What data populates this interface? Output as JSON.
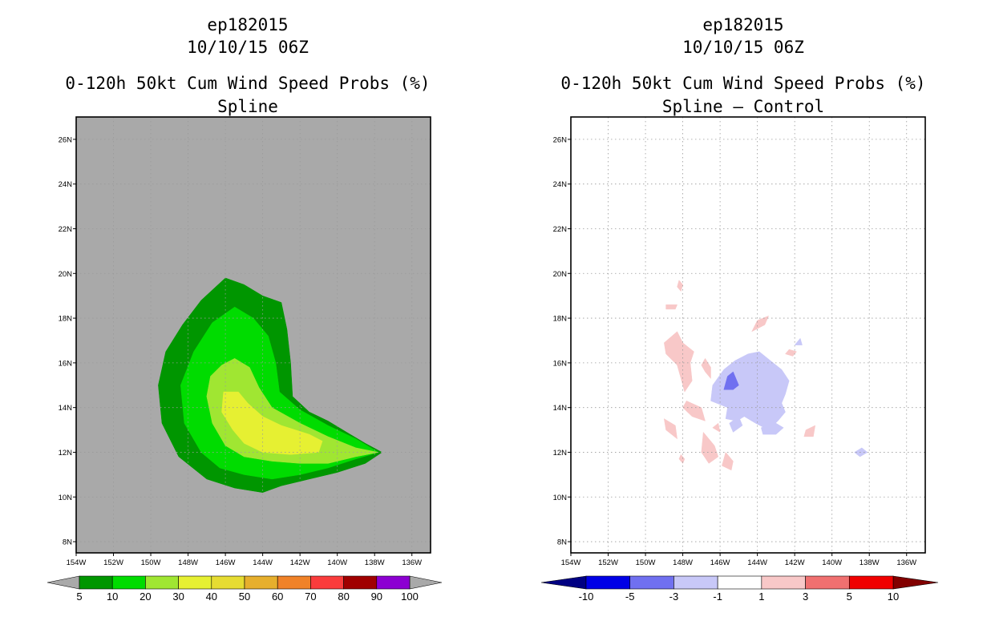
{
  "charts": {
    "left": {
      "storm_id": "ep182015",
      "datetime": "10/10/15 06Z",
      "product": "0-120h 50kt Cum Wind Speed Probs (%)",
      "subtitle": "Spline"
    },
    "right": {
      "storm_id": "ep182015",
      "datetime": "10/10/15 06Z",
      "product": "0-120h 50kt Cum Wind Speed Probs (%)",
      "subtitle": "Spline – Control"
    }
  },
  "chart_data": [
    {
      "type": "contour-map",
      "title": "0-120h 50kt Cum Wind Speed Probs (%)",
      "subtitle": "Spline",
      "x_tick_labels": [
        "154W",
        "152W",
        "150W",
        "148W",
        "146W",
        "144W",
        "142W",
        "140W",
        "138W",
        "136W"
      ],
      "y_tick_labels": [
        "8N",
        "10N",
        "12N",
        "14N",
        "16N",
        "18N",
        "20N",
        "22N",
        "24N",
        "26N"
      ],
      "xlim": [
        -154,
        -135
      ],
      "ylim": [
        7.5,
        27
      ],
      "background_color": "#a9a9a9",
      "colorbar": {
        "labels": [
          "5",
          "10",
          "20",
          "30",
          "40",
          "50",
          "60",
          "70",
          "80",
          "90",
          "100"
        ],
        "colors": [
          "#009600",
          "#00dc00",
          "#a0e632",
          "#e6f032",
          "#e6dc32",
          "#e6af2d",
          "#f08228",
          "#fa3c3c",
          "#a00000",
          "#8c00d2"
        ],
        "end_arrow_color": "#a9a9a9"
      },
      "contours": [
        {
          "level": "5-10",
          "color": "#009600",
          "points": [
            [
              -146.0,
              19.8
            ],
            [
              -145.0,
              19.5
            ],
            [
              -144.0,
              19.0
            ],
            [
              -143.0,
              18.7
            ],
            [
              -142.7,
              17.5
            ],
            [
              -142.5,
              16.0
            ],
            [
              -142.4,
              14.5
            ],
            [
              -141.5,
              13.8
            ],
            [
              -140.5,
              13.4
            ],
            [
              -139.5,
              12.9
            ],
            [
              -138.5,
              12.4
            ],
            [
              -137.6,
              12.0
            ],
            [
              -138.5,
              11.5
            ],
            [
              -140.0,
              11.1
            ],
            [
              -141.5,
              10.8
            ],
            [
              -143.0,
              10.5
            ],
            [
              -144.0,
              10.2
            ],
            [
              -145.5,
              10.4
            ],
            [
              -147.0,
              10.8
            ],
            [
              -148.5,
              11.8
            ],
            [
              -149.4,
              13.3
            ],
            [
              -149.6,
              15.0
            ],
            [
              -149.2,
              16.5
            ],
            [
              -148.3,
              17.7
            ],
            [
              -147.3,
              18.8
            ]
          ]
        },
        {
          "level": "10-20",
          "color": "#00dc00",
          "points": [
            [
              -145.5,
              18.5
            ],
            [
              -144.5,
              18.0
            ],
            [
              -143.7,
              17.2
            ],
            [
              -143.3,
              16.0
            ],
            [
              -143.1,
              14.7
            ],
            [
              -142.0,
              13.9
            ],
            [
              -140.5,
              13.2
            ],
            [
              -139.0,
              12.6
            ],
            [
              -137.8,
              12.0
            ],
            [
              -139.0,
              11.7
            ],
            [
              -140.5,
              11.3
            ],
            [
              -142.0,
              11.0
            ],
            [
              -143.5,
              10.8
            ],
            [
              -145.0,
              11.0
            ],
            [
              -146.3,
              11.3
            ],
            [
              -147.3,
              12.0
            ],
            [
              -148.2,
              13.3
            ],
            [
              -148.4,
              15.0
            ],
            [
              -147.7,
              16.5
            ],
            [
              -146.7,
              17.8
            ]
          ]
        },
        {
          "level": "20-30",
          "color": "#a0e632",
          "points": [
            [
              -145.5,
              16.2
            ],
            [
              -144.7,
              15.8
            ],
            [
              -144.2,
              14.9
            ],
            [
              -143.5,
              14.0
            ],
            [
              -142.0,
              13.3
            ],
            [
              -140.5,
              12.7
            ],
            [
              -139.0,
              12.2
            ],
            [
              -137.8,
              12.0
            ],
            [
              -139.0,
              11.8
            ],
            [
              -140.5,
              11.5
            ],
            [
              -142.0,
              11.5
            ],
            [
              -143.5,
              11.6
            ],
            [
              -145.0,
              11.8
            ],
            [
              -146.0,
              12.3
            ],
            [
              -146.7,
              13.3
            ],
            [
              -147.0,
              14.5
            ],
            [
              -146.8,
              15.4
            ],
            [
              -146.2,
              15.9
            ]
          ]
        },
        {
          "level": "30-40",
          "color": "#e6f032",
          "points": [
            [
              -146.1,
              14.7
            ],
            [
              -145.3,
              14.7
            ],
            [
              -144.8,
              14.2
            ],
            [
              -144.0,
              13.6
            ],
            [
              -143.0,
              13.2
            ],
            [
              -141.5,
              12.8
            ],
            [
              -140.8,
              12.5
            ],
            [
              -141.0,
              12.0
            ],
            [
              -142.5,
              11.9
            ],
            [
              -144.0,
              12.0
            ],
            [
              -145.0,
              12.4
            ],
            [
              -145.6,
              13.0
            ],
            [
              -146.2,
              13.8
            ]
          ]
        }
      ]
    },
    {
      "type": "contour-map",
      "title": "0-120h 50kt Cum Wind Speed Probs (%)",
      "subtitle": "Spline – Control",
      "x_tick_labels": [
        "154W",
        "152W",
        "150W",
        "148W",
        "146W",
        "144W",
        "142W",
        "140W",
        "138W",
        "136W"
      ],
      "y_tick_labels": [
        "8N",
        "10N",
        "12N",
        "14N",
        "16N",
        "18N",
        "20N",
        "22N",
        "24N",
        "26N"
      ],
      "xlim": [
        -154,
        -135
      ],
      "ylim": [
        7.5,
        27
      ],
      "background_color": "#ffffff",
      "grid": true,
      "colorbar": {
        "labels": [
          "-10",
          "-5",
          "-3",
          "-1",
          "1",
          "3",
          "5",
          "10"
        ],
        "colors": [
          "#0000e6",
          "#7070f0",
          "#c8c8f8",
          "#ffffff",
          "#f8c8c8",
          "#f07070",
          "#f00000"
        ],
        "left_arrow_color": "#000082",
        "right_arrow_color": "#820000"
      },
      "contours": [
        {
          "level": "-3 to -1",
          "color": "#c8c8f8",
          "points": [
            [
              -145.8,
              15.7
            ],
            [
              -145.2,
              16.1
            ],
            [
              -144.5,
              16.4
            ],
            [
              -143.9,
              16.5
            ],
            [
              -143.3,
              16.1
            ],
            [
              -142.7,
              15.7
            ],
            [
              -142.3,
              15.2
            ],
            [
              -142.5,
              14.6
            ],
            [
              -142.7,
              14.2
            ],
            [
              -142.5,
              13.8
            ],
            [
              -142.9,
              13.4
            ],
            [
              -143.4,
              13.0
            ],
            [
              -144.1,
              13.3
            ],
            [
              -144.7,
              13.6
            ],
            [
              -145.1,
              13.4
            ],
            [
              -145.7,
              13.5
            ],
            [
              -145.6,
              14.0
            ],
            [
              -146.5,
              14.3
            ],
            [
              -146.4,
              15.0
            ]
          ]
        },
        {
          "level": "-3 to -1",
          "color": "#c8c8f8",
          "points": [
            [
              -145.5,
              13.3
            ],
            [
              -145.0,
              13.6
            ],
            [
              -144.8,
              13.2
            ],
            [
              -145.3,
              12.9
            ]
          ]
        },
        {
          "level": "-3 to -1",
          "color": "#c8c8f8",
          "points": [
            [
              -143.8,
              13.1
            ],
            [
              -143.0,
              13.3
            ],
            [
              -142.6,
              13.1
            ],
            [
              -143.0,
              12.8
            ],
            [
              -143.7,
              12.8
            ]
          ]
        },
        {
          "level": "-3 to -1",
          "color": "#c8c8f8",
          "points": [
            [
              -142.0,
              16.8
            ],
            [
              -141.7,
              17.1
            ],
            [
              -141.6,
              16.8
            ]
          ]
        },
        {
          "level": "-3 to -1",
          "color": "#c8c8f8",
          "points": [
            [
              -138.8,
              12.0
            ],
            [
              -138.4,
              12.2
            ],
            [
              -138.1,
              12.0
            ],
            [
              -138.5,
              11.8
            ]
          ]
        },
        {
          "level": "-5 to -3",
          "color": "#7070f0",
          "points": [
            [
              -145.6,
              15.4
            ],
            [
              -145.3,
              15.6
            ],
            [
              -145.0,
              15.0
            ],
            [
              -145.3,
              14.8
            ],
            [
              -145.8,
              14.8
            ]
          ]
        },
        {
          "level": "1 to 3",
          "color": "#f8c8c8",
          "points": [
            [
              -148.2,
              19.7
            ],
            [
              -148.0,
              19.5
            ],
            [
              -148.1,
              19.2
            ],
            [
              -148.3,
              19.4
            ]
          ]
        },
        {
          "level": "1 to 3",
          "color": "#f8c8c8",
          "points": [
            [
              -148.9,
              18.6
            ],
            [
              -148.3,
              18.6
            ],
            [
              -148.4,
              18.4
            ],
            [
              -148.9,
              18.4
            ]
          ]
        },
        {
          "level": "1 to 3",
          "color": "#f8c8c8",
          "points": [
            [
              -148.3,
              17.4
            ],
            [
              -148.0,
              16.9
            ],
            [
              -147.4,
              16.5
            ],
            [
              -147.6,
              16.0
            ],
            [
              -147.5,
              15.2
            ],
            [
              -147.9,
              14.7
            ],
            [
              -148.1,
              15.3
            ],
            [
              -148.3,
              15.9
            ],
            [
              -148.9,
              16.4
            ],
            [
              -149.0,
              16.9
            ]
          ]
        },
        {
          "level": "1 to 3",
          "color": "#f8c8c8",
          "points": [
            [
              -146.8,
              16.2
            ],
            [
              -146.5,
              15.8
            ],
            [
              -146.5,
              15.3
            ],
            [
              -146.8,
              15.6
            ],
            [
              -147.0,
              15.9
            ]
          ]
        },
        {
          "level": "1 to 3",
          "color": "#f8c8c8",
          "points": [
            [
              -147.8,
              14.3
            ],
            [
              -147.0,
              14.0
            ],
            [
              -146.8,
              13.4
            ],
            [
              -147.5,
              13.6
            ],
            [
              -148.0,
              14.0
            ]
          ]
        },
        {
          "level": "1 to 3",
          "color": "#f8c8c8",
          "points": [
            [
              -149.0,
              13.5
            ],
            [
              -148.4,
              13.2
            ],
            [
              -148.3,
              12.6
            ],
            [
              -148.9,
              13.0
            ]
          ]
        },
        {
          "level": "1 to 3",
          "color": "#f8c8c8",
          "points": [
            [
              -146.9,
              12.9
            ],
            [
              -146.3,
              12.3
            ],
            [
              -146.1,
              11.8
            ],
            [
              -146.6,
              11.5
            ],
            [
              -147.0,
              12.0
            ]
          ]
        },
        {
          "level": "1 to 3",
          "color": "#f8c8c8",
          "points": [
            [
              -145.7,
              12.0
            ],
            [
              -145.3,
              11.6
            ],
            [
              -145.4,
              11.2
            ],
            [
              -145.9,
              11.4
            ]
          ]
        },
        {
          "level": "1 to 3",
          "color": "#f8c8c8",
          "points": [
            [
              -148.1,
              11.9
            ],
            [
              -147.9,
              11.7
            ],
            [
              -148.0,
              11.5
            ],
            [
              -148.2,
              11.7
            ]
          ]
        },
        {
          "level": "1 to 3",
          "color": "#f8c8c8",
          "points": [
            [
              -144.0,
              17.9
            ],
            [
              -143.4,
              18.1
            ],
            [
              -143.6,
              17.7
            ],
            [
              -144.3,
              17.4
            ]
          ]
        },
        {
          "level": "1 to 3",
          "color": "#f8c8c8",
          "points": [
            [
              -141.4,
              13.0
            ],
            [
              -140.9,
              13.2
            ],
            [
              -141.0,
              12.7
            ],
            [
              -141.5,
              12.7
            ]
          ]
        },
        {
          "level": "1 to 3",
          "color": "#f8c8c8",
          "points": [
            [
              -142.3,
              16.6
            ],
            [
              -141.9,
              16.5
            ],
            [
              -142.1,
              16.3
            ],
            [
              -142.5,
              16.4
            ]
          ]
        },
        {
          "level": "1 to 3",
          "color": "#f8c8c8",
          "points": [
            [
              -146.4,
              13.1
            ],
            [
              -146.1,
              13.3
            ],
            [
              -146.0,
              12.9
            ]
          ]
        }
      ]
    }
  ]
}
